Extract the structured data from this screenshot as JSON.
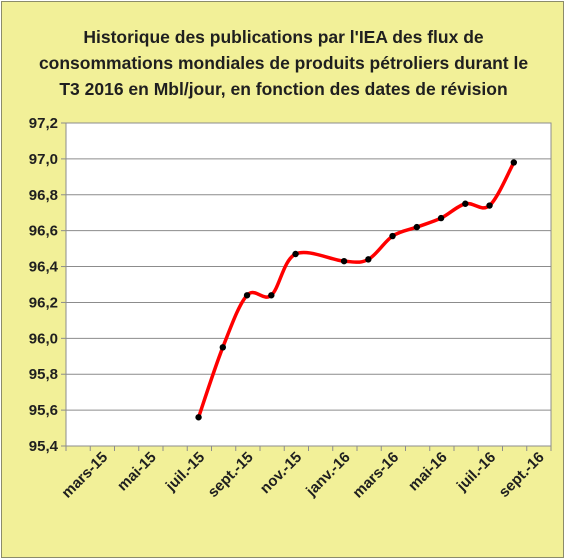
{
  "chart_data": {
    "type": "line",
    "title": "Historique des publications  par l'IEA des flux de\nconsommations   mondiales de produits pétroliers  durant le\nT3 2016  en Mbl/jour,  en fonction des dates de révision",
    "xlabel": "",
    "ylabel": "",
    "x_tick_labels": [
      "mars-15",
      "mai-15",
      "juil.-15",
      "sept.-15",
      "nov.-15",
      "janv.-16",
      "mars-16",
      "mai-16",
      "juil.-16",
      "sept.-16"
    ],
    "ylim": [
      95.4,
      97.2
    ],
    "y_ticks": [
      95.4,
      95.6,
      95.8,
      96.0,
      96.2,
      96.4,
      96.6,
      96.8,
      97.0,
      97.2
    ],
    "y_tick_labels": [
      "95,4",
      "95,6",
      "95,8",
      "96,0",
      "96,2",
      "96,4",
      "96,6",
      "96,8",
      "97,0",
      "97,2"
    ],
    "grid": true,
    "legend": "none",
    "line_color": "#ff0000",
    "marker_color": "#000000",
    "plot_background": "#ffffff",
    "background": "#f2f098",
    "series": [
      {
        "points": [
          {
            "x": "2015-07-15",
            "y": 95.56
          },
          {
            "x": "2015-08-15",
            "y": 95.95
          },
          {
            "x": "2015-09-15",
            "y": 96.24
          },
          {
            "x": "2015-10-15",
            "y": 96.24
          },
          {
            "x": "2015-11-15",
            "y": 96.47
          },
          {
            "x": "2016-01-15",
            "y": 96.43
          },
          {
            "x": "2016-02-15",
            "y": 96.44
          },
          {
            "x": "2016-03-15",
            "y": 96.57
          },
          {
            "x": "2016-04-15",
            "y": 96.62
          },
          {
            "x": "2016-05-15",
            "y": 96.67
          },
          {
            "x": "2016-06-15",
            "y": 96.75
          },
          {
            "x": "2016-07-15",
            "y": 96.74
          },
          {
            "x": "2016-08-15",
            "y": 96.98
          }
        ]
      }
    ]
  }
}
